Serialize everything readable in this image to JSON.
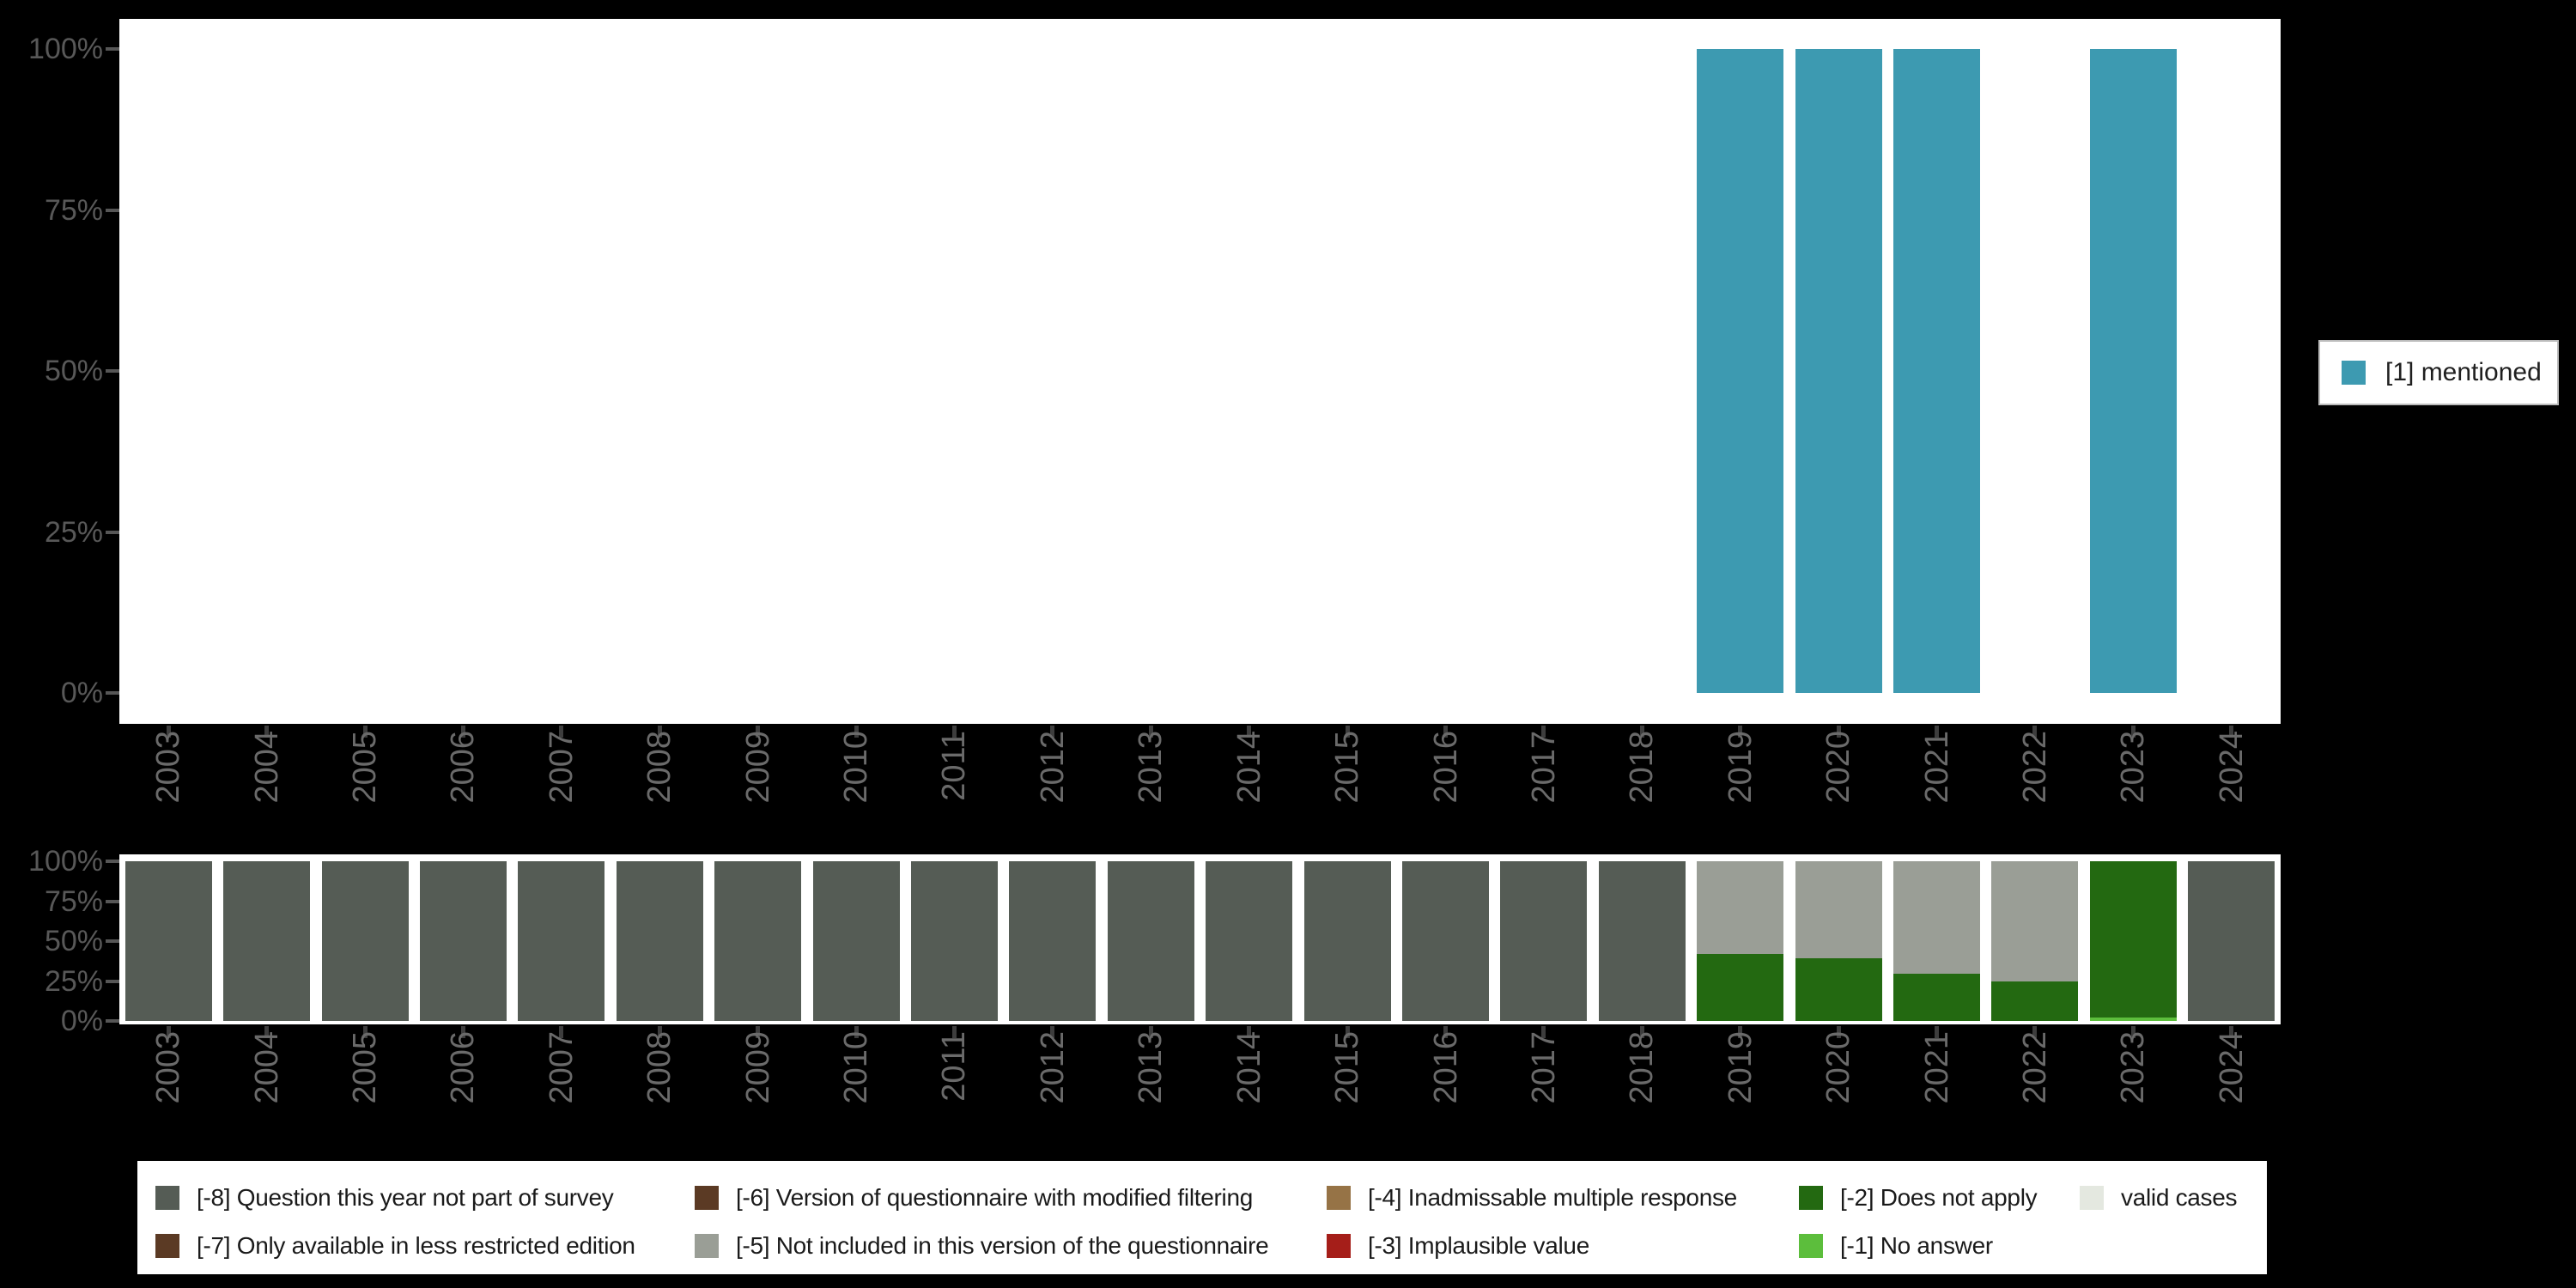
{
  "background": "#000000",
  "colors": {
    "teal": "#3D9AB1",
    "slate": "#555C55",
    "gray": "#9A9E96",
    "green": "#236911",
    "lightgreen": "#5CBE3C",
    "brown": "#5B3A24",
    "tan": "#967346",
    "red": "#A51E19",
    "valid": "#E4E8E0",
    "plot_bg": "#FFFFFF",
    "y_label": "#585858",
    "x_label": "#6A6A6A",
    "y_tick": "#565656",
    "x_tick": "#3D3D3D",
    "legend_text": "#1A1A1A"
  },
  "y_ticks": [
    {
      "label": "100%",
      "value": 100
    },
    {
      "label": "75%",
      "value": 75
    },
    {
      "label": "50%",
      "value": 50
    },
    {
      "label": "25%",
      "value": 25
    },
    {
      "label": "0%",
      "value": 0
    }
  ],
  "chart_data": [
    {
      "type": "bar",
      "name": "response-distribution",
      "title": "",
      "xlabel": "",
      "ylabel": "",
      "ylim": [
        0,
        100
      ],
      "grid": false,
      "categories": [
        "2003",
        "2004",
        "2005",
        "2006",
        "2007",
        "2008",
        "2009",
        "2010",
        "2011",
        "2012",
        "2013",
        "2014",
        "2015",
        "2016",
        "2017",
        "2018",
        "2019",
        "2020",
        "2021",
        "2022",
        "2023",
        "2024"
      ],
      "series": [
        {
          "name": "[1] mentioned",
          "color_key": "teal",
          "values": [
            0,
            0,
            0,
            0,
            0,
            0,
            0,
            0,
            0,
            0,
            0,
            0,
            0,
            0,
            0,
            0,
            100,
            100,
            100,
            0,
            100,
            0
          ]
        }
      ],
      "legend_position": "right"
    },
    {
      "type": "bar",
      "name": "missing-values-by-year",
      "stacked": true,
      "title": "",
      "xlabel": "",
      "ylabel": "",
      "ylim": [
        0,
        100
      ],
      "grid": false,
      "categories": [
        "2003",
        "2004",
        "2005",
        "2006",
        "2007",
        "2008",
        "2009",
        "2010",
        "2011",
        "2012",
        "2013",
        "2014",
        "2015",
        "2016",
        "2017",
        "2018",
        "2019",
        "2020",
        "2021",
        "2022",
        "2023",
        "2024"
      ],
      "series": [
        {
          "name": "[-1] No answer",
          "color_key": "lightgreen",
          "values": [
            0,
            0,
            0,
            0,
            0,
            0,
            0,
            0,
            0,
            0,
            0,
            0,
            0,
            0,
            0,
            0,
            0,
            0,
            0,
            0,
            2,
            0
          ]
        },
        {
          "name": "[-2] Does not apply",
          "color_key": "green",
          "values": [
            0,
            0,
            0,
            0,
            0,
            0,
            0,
            0,
            0,
            0,
            0,
            0,
            0,
            0,
            0,
            0,
            42,
            39,
            29.5,
            25,
            98,
            0
          ]
        },
        {
          "name": "[-5] Not included in this version of the questionnaire",
          "color_key": "gray",
          "values": [
            0,
            0,
            0,
            0,
            0,
            0,
            0,
            0,
            0,
            0,
            0,
            0,
            0,
            0,
            0,
            0,
            58,
            61,
            70.5,
            75,
            0,
            0
          ]
        },
        {
          "name": "[-8] Question this year not part of survey",
          "color_key": "slate",
          "values": [
            100,
            100,
            100,
            100,
            100,
            100,
            100,
            100,
            100,
            100,
            100,
            100,
            100,
            100,
            100,
            100,
            0,
            0,
            0,
            0,
            0,
            100
          ]
        }
      ],
      "legend_position": "bottom"
    }
  ],
  "legend_top": {
    "items": [
      {
        "label": "[1] mentioned",
        "color_key": "teal"
      }
    ]
  },
  "legend_bottom": {
    "items": [
      {
        "label": "[-8] Question this year not part of survey",
        "color_key": "slate",
        "col": 0,
        "row": 0
      },
      {
        "label": "[-7] Only available in less restricted edition",
        "color_key": "brown",
        "col": 0,
        "row": 1
      },
      {
        "label": "[-6] Version of questionnaire with modified filtering",
        "color_key": "brown",
        "col": 1,
        "row": 0
      },
      {
        "label": "[-5] Not included in this version of the questionnaire",
        "color_key": "gray",
        "col": 1,
        "row": 1
      },
      {
        "label": "[-4] Inadmissable multiple response",
        "color_key": "tan",
        "col": 2,
        "row": 0
      },
      {
        "label": "[-3] Implausible value",
        "color_key": "red",
        "col": 2,
        "row": 1
      },
      {
        "label": "[-2] Does not apply",
        "color_key": "green",
        "col": 3,
        "row": 0
      },
      {
        "label": "[-1] No answer",
        "color_key": "lightgreen",
        "col": 3,
        "row": 1
      },
      {
        "label": "valid cases",
        "color_key": "valid",
        "col": 4,
        "row": 0
      }
    ]
  }
}
